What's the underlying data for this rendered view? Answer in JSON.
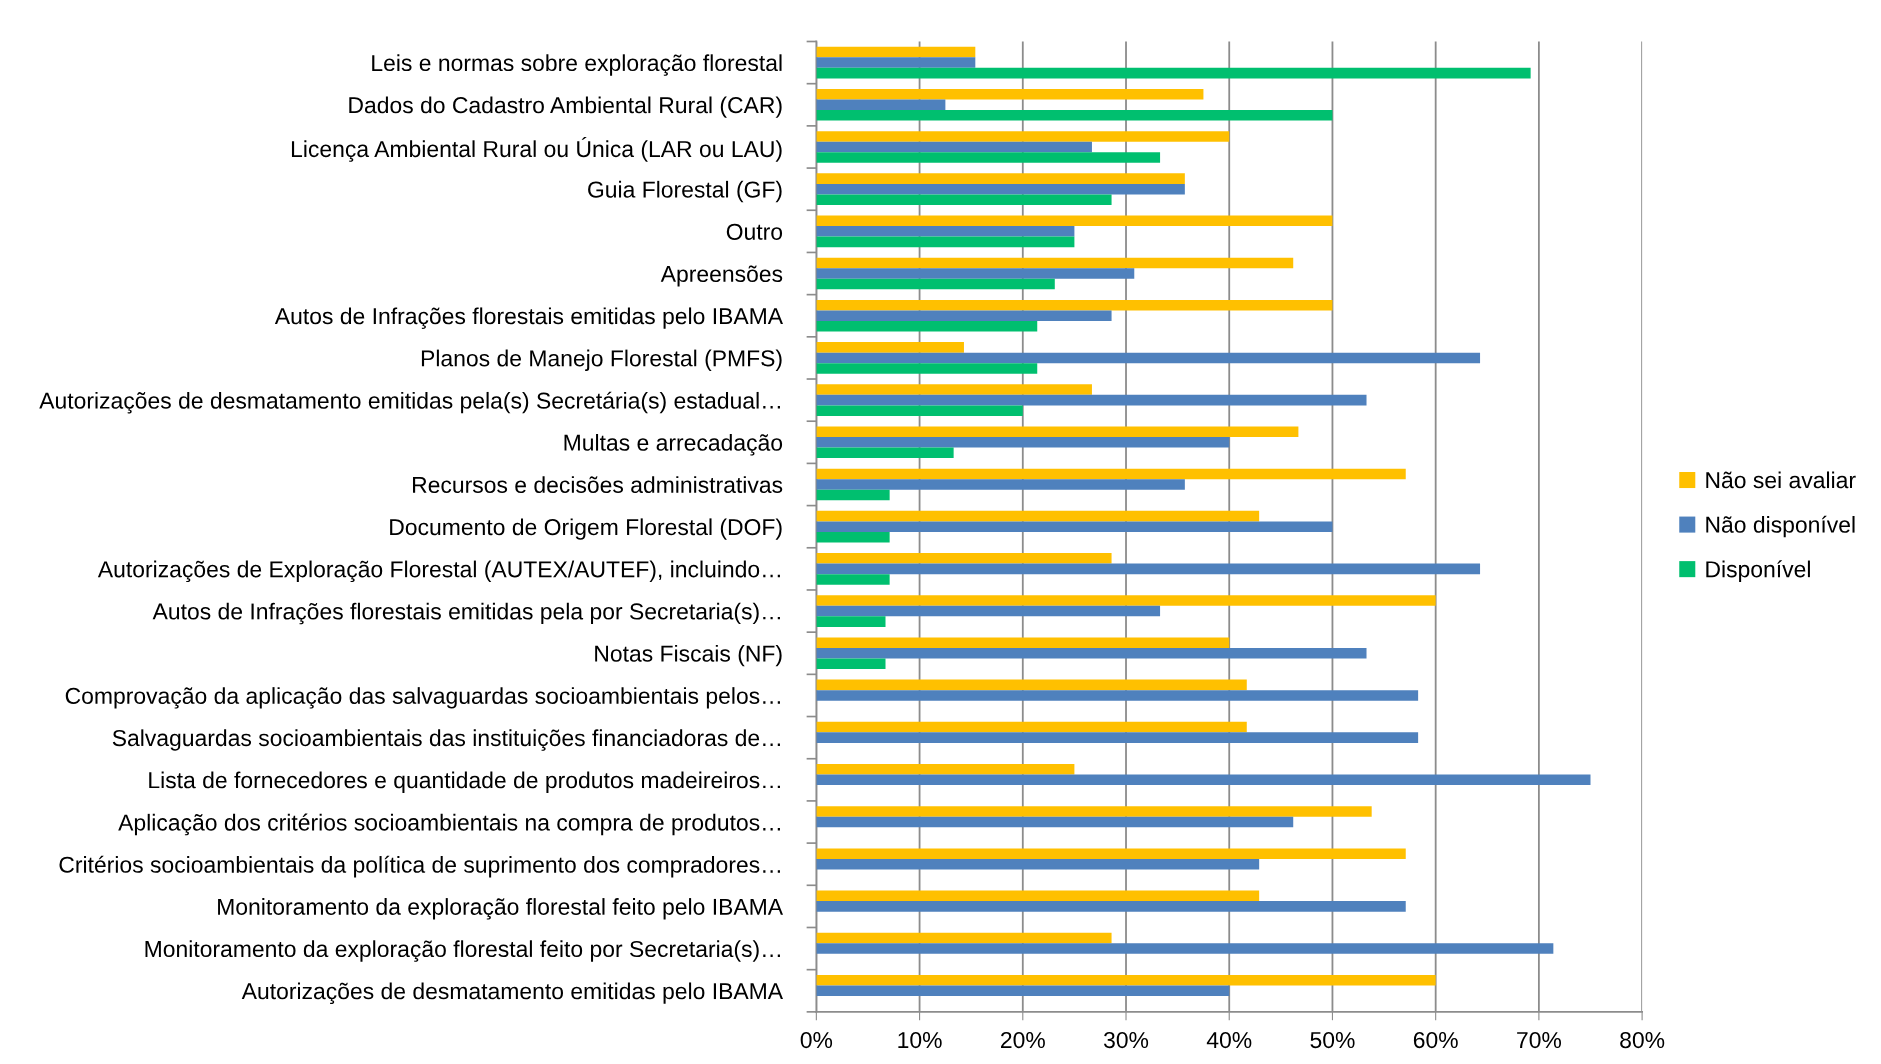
{
  "chart_data": {
    "type": "bar",
    "orientation": "horizontal",
    "categories": [
      "Leis e normas sobre exploração florestal",
      "Dados do Cadastro Ambiental Rural (CAR)",
      "Licença Ambiental Rural ou Única (LAR ou LAU)",
      "Guia Florestal (GF)",
      "Outro",
      "Apreensões",
      "Autos de Infrações florestais emitidas pelo IBAMA",
      "Planos de Manejo Florestal (PMFS)",
      "Autorizações de desmatamento emitidas pela(s) Secretária(s) estadual…",
      "Multas e arrecadação",
      "Recursos e decisões administrativas",
      "Documento de Origem Florestal (DOF)",
      "Autorizações de Exploração Florestal (AUTEX/AUTEF), incluindo…",
      "Autos de Infrações florestais emitidas pela por Secretaria(s)…",
      "Notas Fiscais (NF)",
      "Comprovação da aplicação das salvaguardas socioambientais pelos…",
      "Salvaguardas socioambientais das instituições financiadoras de…",
      "Lista de fornecedores e quantidade de produtos madeireiros…",
      "Aplicação dos critérios socioambientais na compra de produtos…",
      "Critérios socioambientais da política de suprimento dos compradores…",
      "Monitoramento da exploração florestal feito pelo IBAMA",
      "Monitoramento da exploração florestal feito por Secretaria(s)…",
      "Autorizações de desmatamento emitidas pelo IBAMA"
    ],
    "series": [
      {
        "name": "Não sei avaliar",
        "color": "#ffc000",
        "values": [
          15.4,
          37.5,
          40,
          35.7,
          50,
          46.2,
          50,
          14.3,
          26.7,
          46.7,
          57.1,
          42.9,
          28.6,
          60,
          40,
          41.7,
          41.7,
          25,
          53.8,
          57.1,
          42.9,
          28.6,
          60
        ]
      },
      {
        "name": "Não disponível",
        "color": "#4f81bd",
        "values": [
          15.4,
          12.5,
          26.7,
          35.7,
          25,
          30.8,
          28.6,
          64.3,
          53.3,
          40,
          35.7,
          50,
          64.3,
          33.3,
          53.3,
          58.3,
          58.3,
          75,
          46.2,
          42.9,
          57.1,
          71.4,
          40
        ]
      },
      {
        "name": "Disponível",
        "color": "#00bf6f",
        "values": [
          69.2,
          50,
          33.3,
          28.6,
          25,
          23.1,
          21.4,
          21.4,
          20,
          13.3,
          7.1,
          7.1,
          7.1,
          6.7,
          6.7,
          0,
          0,
          0,
          0,
          0,
          0,
          0,
          0
        ]
      }
    ],
    "xlim": [
      0,
      80
    ],
    "xticks": [
      {
        "value": 0,
        "label": "0%"
      },
      {
        "value": 10,
        "label": "10%"
      },
      {
        "value": 20,
        "label": "20%"
      },
      {
        "value": 30,
        "label": "30%"
      },
      {
        "value": 40,
        "label": "40%"
      },
      {
        "value": 50,
        "label": "50%"
      },
      {
        "value": 60,
        "label": "60%"
      },
      {
        "value": 70,
        "label": "70%"
      },
      {
        "value": 80,
        "label": "80%"
      }
    ],
    "grid": "x",
    "legend": "right"
  }
}
